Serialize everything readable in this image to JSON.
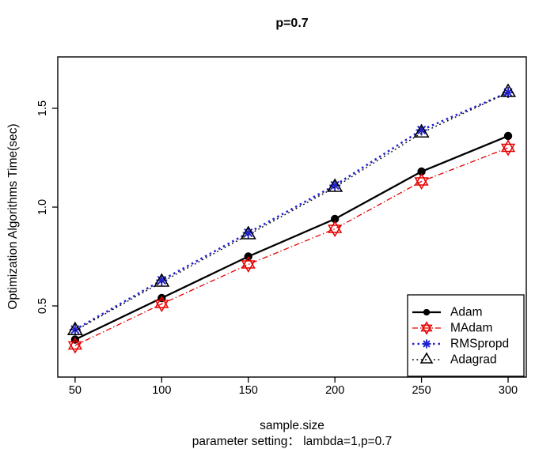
{
  "title": "p=0.7",
  "axes": {
    "ylabel": "Optimization Algorithms Time(sec)",
    "xlabel": "sample.size",
    "xlabel2": "parameter setting：  lambda=1,p=0.7",
    "xticks": [
      50,
      100,
      150,
      200,
      250,
      300
    ],
    "yticks": [
      "0.5",
      "1.0",
      "1.5"
    ]
  },
  "chart_data": {
    "type": "line",
    "title": "p=0.7",
    "xlabel": "sample.size",
    "ylabel": "Optimization Algorithms Time(sec)",
    "annotation": "parameter setting：  lambda=1,p=0.7",
    "x": [
      50,
      100,
      150,
      200,
      250,
      300
    ],
    "series": [
      {
        "name": "Adam",
        "color": "#000000",
        "line": "solid",
        "marker": "filled-circle",
        "values": [
          0.33,
          0.54,
          0.75,
          0.94,
          1.18,
          1.36
        ]
      },
      {
        "name": "MAdam",
        "color": "#e60000",
        "line": "dashdot",
        "marker": "star-hexagram",
        "values": [
          0.3,
          0.51,
          0.71,
          0.89,
          1.13,
          1.3
        ]
      },
      {
        "name": "RMSpropd",
        "color": "#2222d2",
        "line": "dotted-bold",
        "marker": "asterisk",
        "values": [
          0.38,
          0.63,
          0.87,
          1.11,
          1.39,
          1.58
        ]
      },
      {
        "name": "Adagrad",
        "color": "#000000",
        "line": "dotted",
        "marker": "open-triangle",
        "values": [
          0.375,
          0.62,
          0.86,
          1.1,
          1.375,
          1.58
        ]
      }
    ],
    "xlim": [
      40,
      310.5
    ],
    "ylim": [
      0.14,
      1.76
    ],
    "grid": false,
    "legend_position": "bottom-right"
  }
}
